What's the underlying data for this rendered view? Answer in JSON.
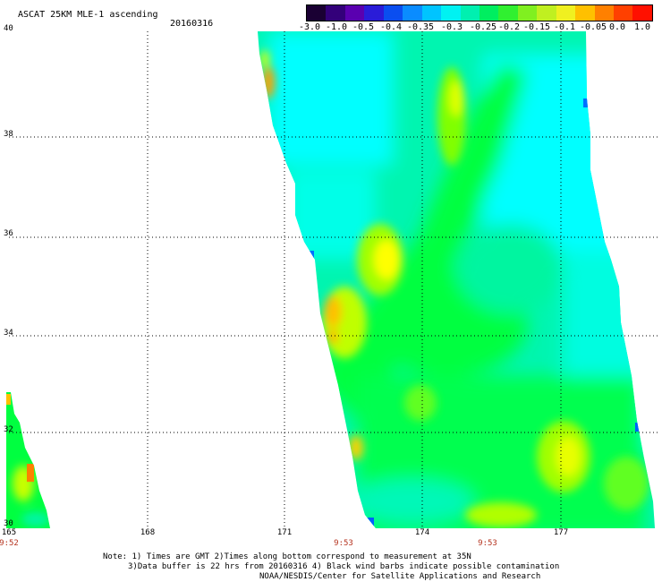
{
  "header": {
    "title": "ASCAT 25KM MLE-1 ascending",
    "date": "20160316"
  },
  "colorbar": {
    "labels": [
      "-3.0",
      "-1.0",
      "-0.5",
      "-0.4",
      "-0.35",
      "-0.3",
      "-0.25",
      "-0.2",
      "-0.15",
      "-0.1",
      "-0.05",
      "0.0",
      "1.0"
    ],
    "colors": [
      "#1a0033",
      "#33007a",
      "#5a00b0",
      "#2a1cd8",
      "#0a4ef0",
      "#0a8cff",
      "#00c4ff",
      "#00f2f2",
      "#00f0b0",
      "#00ee60",
      "#30f030",
      "#80f020",
      "#c0f020",
      "#f0f020",
      "#ffc000",
      "#ff8000",
      "#ff4000",
      "#ff1000"
    ]
  },
  "map": {
    "lat_labels": [
      "40",
      "38",
      "36",
      "34",
      "32",
      "30"
    ],
    "lon_labels": [
      "165",
      "168",
      "171",
      "174",
      "177"
    ],
    "time_labels": [
      "9:52",
      "9:53",
      "9:53"
    ],
    "colors": {
      "cyan": "#00ffff",
      "aqua_green": "#00f5a8",
      "green": "#00ff40",
      "lime": "#80ff00",
      "yellow": "#ffff00",
      "orange": "#ffc000",
      "deep_orange": "#ff8000",
      "blue": "#0060ff"
    }
  },
  "notes": {
    "line1": "Note: 1) Times are GMT 2)Times along bottom correspond to measurement at 35N",
    "line2": "3)Data buffer is 22 hrs from 20160316 4) Black wind barbs indicate possible contamination",
    "line3": "NOAA/NESDIS/Center for Satellite Applications and Research"
  }
}
